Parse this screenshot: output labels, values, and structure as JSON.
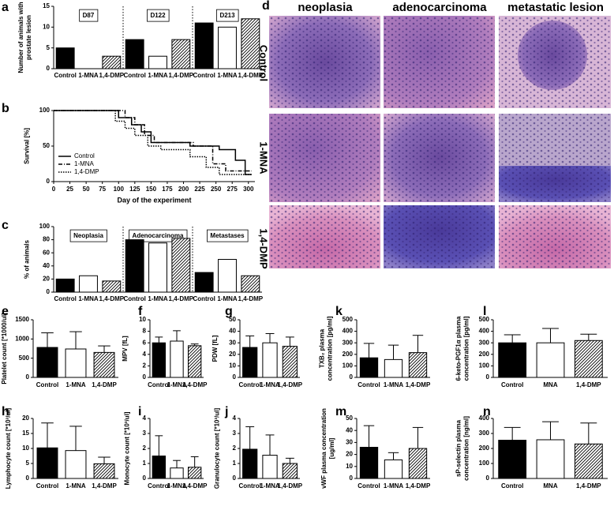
{
  "chart_data": [
    {
      "panel": "a",
      "type": "grouped_bar",
      "ylabel": [
        "Number of animals with",
        "prostate lesion"
      ],
      "groups": [
        "D87",
        "D122",
        "D213"
      ],
      "series": [
        {
          "name": "Control",
          "values": [
            5,
            7,
            11
          ]
        },
        {
          "name": "1-MNA",
          "values": [
            0,
            3,
            10
          ]
        },
        {
          "name": "1,4-DMP",
          "values": [
            3,
            7,
            12
          ]
        }
      ],
      "fills": [
        "#000000",
        "#ffffff",
        "#ffffff"
      ],
      "hatch": [
        false,
        false,
        true
      ],
      "ylim": [
        0,
        15
      ],
      "yticks": [
        0,
        5,
        10,
        15
      ]
    },
    {
      "panel": "b",
      "type": "line",
      "ylabel": "Survival [%]",
      "xlabel": "Day of the experiment",
      "legend": "lower-left",
      "series": [
        {
          "name": "Control",
          "dash": "solid",
          "x": [
            0,
            100,
            100,
            120,
            120,
            135,
            135,
            150,
            150,
            210,
            210,
            255,
            255,
            280,
            280,
            295,
            295,
            305
          ],
          "values": [
            100,
            100,
            90,
            90,
            80,
            80,
            70,
            70,
            55,
            55,
            50,
            50,
            45,
            45,
            30,
            30,
            10,
            10
          ]
        },
        {
          "name": "1-MNA",
          "dash": "dashdot",
          "x": [
            0,
            110,
            110,
            125,
            125,
            140,
            140,
            155,
            155,
            215,
            215,
            245,
            245,
            265,
            265,
            305
          ],
          "values": [
            100,
            100,
            90,
            90,
            80,
            80,
            65,
            65,
            55,
            55,
            50,
            50,
            25,
            25,
            15,
            15
          ]
        },
        {
          "name": "1,4-DMP",
          "dash": "dotted",
          "x": [
            0,
            95,
            95,
            110,
            110,
            125,
            125,
            145,
            145,
            165,
            165,
            210,
            210,
            235,
            235,
            255,
            255,
            305
          ],
          "values": [
            100,
            100,
            85,
            85,
            75,
            75,
            65,
            65,
            50,
            50,
            45,
            45,
            35,
            35,
            20,
            20,
            10,
            10
          ]
        }
      ],
      "xlim": [
        0,
        310
      ],
      "xticks": [
        0,
        25,
        50,
        75,
        100,
        125,
        150,
        175,
        200,
        225,
        250,
        275,
        300
      ],
      "ylim": [
        0,
        100
      ],
      "yticks": [
        0,
        50,
        100
      ]
    },
    {
      "panel": "c",
      "type": "grouped_bar",
      "ylabel": "% of animals",
      "groups": [
        "Neoplasia",
        "Adenocarcinoma",
        "Metastases"
      ],
      "series": [
        {
          "name": "Control",
          "values": [
            20,
            80,
            30
          ]
        },
        {
          "name": "1-MNA",
          "values": [
            25,
            75,
            50
          ]
        },
        {
          "name": "1,4-DMP",
          "values": [
            17,
            82,
            25
          ]
        }
      ],
      "fills": [
        "#000000",
        "#ffffff",
        "#ffffff"
      ],
      "hatch": [
        false,
        false,
        true
      ],
      "ylim": [
        0,
        100
      ],
      "yticks": [
        0,
        20,
        40,
        60,
        80,
        100
      ]
    },
    {
      "panel": "e",
      "type": "bar",
      "ylabel": "Platelet count [*1000/ul]",
      "categories": [
        "Control",
        "1-MNA",
        "1,4-DMP"
      ],
      "values": [
        780,
        740,
        650
      ],
      "errors": [
        380,
        450,
        170
      ],
      "fills": [
        "#000000",
        "#ffffff",
        "#ffffff"
      ],
      "hatch": [
        false,
        false,
        true
      ],
      "ylim": [
        0,
        1500
      ],
      "yticks": [
        0,
        500,
        1000,
        1500
      ]
    },
    {
      "panel": "f",
      "type": "bar",
      "ylabel": "MPV [fL]",
      "categories": [
        "Control",
        "1-MNA",
        "1,4-DMP"
      ],
      "values": [
        6.0,
        6.3,
        5.5
      ],
      "errors": [
        1.0,
        1.8,
        0.3
      ],
      "fills": [
        "#000000",
        "#ffffff",
        "#ffffff"
      ],
      "hatch": [
        false,
        false,
        true
      ],
      "ylim": [
        0,
        10
      ],
      "yticks": [
        0,
        2,
        4,
        6,
        8,
        10
      ]
    },
    {
      "panel": "g",
      "type": "bar",
      "ylabel": "PDW [fL]",
      "categories": [
        "Control",
        "1-MNA",
        "1,4-DMP"
      ],
      "values": [
        26,
        30,
        27
      ],
      "errors": [
        10,
        8,
        8
      ],
      "fills": [
        "#000000",
        "#ffffff",
        "#ffffff"
      ],
      "hatch": [
        false,
        false,
        true
      ],
      "ylim": [
        0,
        50
      ],
      "yticks": [
        0,
        10,
        20,
        30,
        40,
        50
      ]
    },
    {
      "panel": "k",
      "type": "bar",
      "ylabel": [
        "TXB₂ plasma",
        "concentration [pg/ml]"
      ],
      "categories": [
        "Control",
        "1-MNA",
        "1,4-DMP"
      ],
      "values": [
        170,
        155,
        215
      ],
      "errors": [
        125,
        125,
        150
      ],
      "fills": [
        "#000000",
        "#ffffff",
        "#ffffff"
      ],
      "hatch": [
        false,
        false,
        true
      ],
      "ylim": [
        0,
        500
      ],
      "yticks": [
        0,
        100,
        200,
        300,
        400,
        500
      ]
    },
    {
      "panel": "l",
      "type": "bar",
      "ylabel": [
        "6-keto-PGF1α plasma",
        "concentration [pg/ml]"
      ],
      "categories": [
        "Control",
        "MNA",
        "1,4-DMP"
      ],
      "values": [
        300,
        300,
        320
      ],
      "errors": [
        70,
        125,
        55
      ],
      "fills": [
        "#000000",
        "#ffffff",
        "#ffffff"
      ],
      "hatch": [
        false,
        false,
        true
      ],
      "ylim": [
        0,
        500
      ],
      "yticks": [
        0,
        100,
        200,
        300,
        400,
        500
      ]
    },
    {
      "panel": "h",
      "type": "bar",
      "ylabel": "Lymphocyte count [*10³/ul]",
      "categories": [
        "Control",
        "1-MNA",
        "1,4-DMP"
      ],
      "values": [
        10.2,
        9.3,
        4.9
      ],
      "errors": [
        8.3,
        8.1,
        2.2
      ],
      "fills": [
        "#000000",
        "#ffffff",
        "#ffffff"
      ],
      "hatch": [
        false,
        false,
        true
      ],
      "ylim": [
        0,
        20
      ],
      "yticks": [
        0,
        5,
        10,
        15,
        20
      ]
    },
    {
      "panel": "i",
      "type": "bar",
      "ylabel": "Monocyte count [*10³/ul]",
      "categories": [
        "Control",
        "1-MNA",
        "1,4-DMP"
      ],
      "values": [
        1.5,
        0.7,
        0.75
      ],
      "errors": [
        1.35,
        0.5,
        0.7
      ],
      "fills": [
        "#000000",
        "#ffffff",
        "#ffffff"
      ],
      "hatch": [
        false,
        false,
        true
      ],
      "ylim": [
        0,
        4
      ],
      "yticks": [
        0,
        1,
        2,
        3,
        4
      ]
    },
    {
      "panel": "j",
      "type": "bar",
      "ylabel": "Granulocyte count [*10³/ul]",
      "categories": [
        "Control",
        "1-MNA",
        "1,4-DMP"
      ],
      "values": [
        1.95,
        1.55,
        1.0
      ],
      "errors": [
        1.5,
        1.35,
        0.35
      ],
      "fills": [
        "#000000",
        "#ffffff",
        "#ffffff"
      ],
      "hatch": [
        false,
        false,
        true
      ],
      "ylim": [
        0,
        4
      ],
      "yticks": [
        0,
        1,
        2,
        3,
        4
      ]
    },
    {
      "panel": "m",
      "type": "bar",
      "ylabel": [
        "vWF plasma concentration",
        "[ug/ml]"
      ],
      "categories": [
        "Control",
        "1-MNA",
        "1,4-DMP"
      ],
      "values": [
        26,
        15.5,
        25
      ],
      "errors": [
        18,
        6,
        17.5
      ],
      "fills": [
        "#000000",
        "#ffffff",
        "#ffffff"
      ],
      "hatch": [
        false,
        false,
        true
      ],
      "ylim": [
        0,
        50
      ],
      "yticks": [
        0,
        10,
        20,
        30,
        40,
        50
      ]
    },
    {
      "panel": "n",
      "type": "bar",
      "ylabel": [
        "sP-selectin plasma",
        "concentration [ng/ml]"
      ],
      "categories": [
        "Control",
        "MNA",
        "1,4-DMP"
      ],
      "values": [
        255,
        258,
        230
      ],
      "errors": [
        85,
        120,
        140
      ],
      "fills": [
        "#000000",
        "#ffffff",
        "#ffffff"
      ],
      "hatch": [
        false,
        false,
        true
      ],
      "ylim": [
        0,
        400
      ],
      "yticks": [
        0,
        100,
        200,
        300,
        400
      ]
    }
  ],
  "histology": {
    "panel": "d",
    "columns": [
      "neoplasia",
      "adenocarcinoma",
      "metastatic lesion"
    ],
    "rows": [
      "Control",
      "1-MNA",
      "1,4-DMP"
    ]
  }
}
